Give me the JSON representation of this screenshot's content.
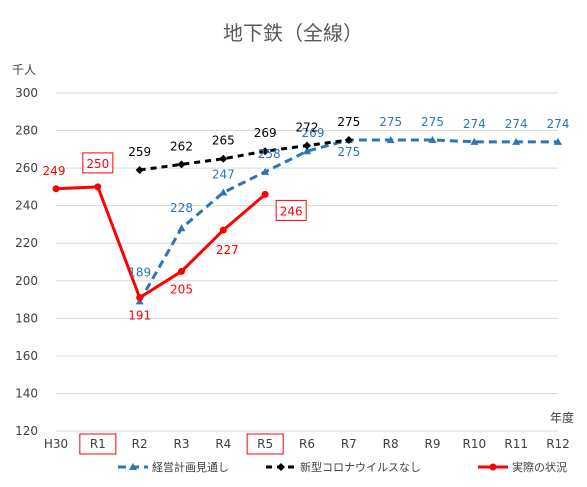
{
  "chart_data": {
    "type": "line",
    "title": "地下鉄（全線）",
    "ylabel": "千人",
    "xlabel": "年度",
    "categories": [
      "H30",
      "R1",
      "R2",
      "R3",
      "R4",
      "R5",
      "R6",
      "R7",
      "R8",
      "R9",
      "R10",
      "R11",
      "R12"
    ],
    "boxed_categories": [
      "R1",
      "R5"
    ],
    "yticks": [
      120,
      140,
      160,
      180,
      200,
      220,
      240,
      260,
      280,
      300
    ],
    "ylim": [
      120,
      300
    ],
    "grid": true,
    "legend_position": "bottom",
    "series": [
      {
        "name": "経営計画見通し",
        "color": "#2e75b6",
        "style": "dashed",
        "marker": "triangle",
        "values": [
          null,
          null,
          189,
          228,
          247,
          258,
          269,
          275,
          275,
          275,
          274,
          274,
          274
        ]
      },
      {
        "name": "新型コロナウイルスなし",
        "color": "#000000",
        "style": "dashed",
        "marker": "diamond",
        "values": [
          null,
          null,
          259,
          262,
          265,
          269,
          272,
          275,
          null,
          null,
          null,
          null,
          null
        ]
      },
      {
        "name": "実際の状況",
        "color": "#ff0000",
        "style": "solid",
        "marker": "circle",
        "values": [
          249,
          250,
          191,
          205,
          227,
          246,
          null,
          null,
          null,
          null,
          null,
          null,
          null
        ]
      }
    ]
  }
}
